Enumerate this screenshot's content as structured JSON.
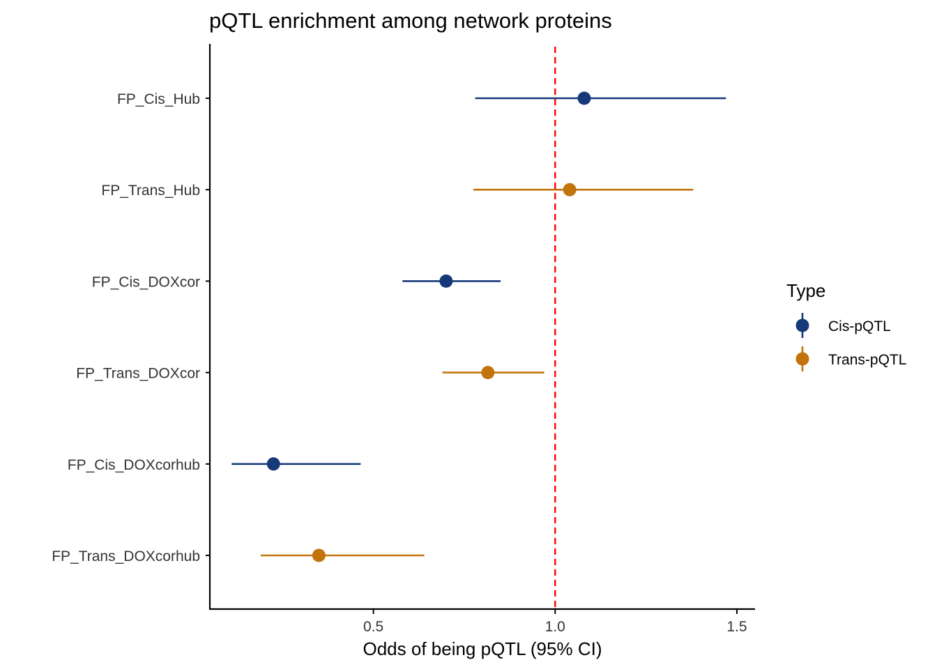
{
  "chart_data": {
    "type": "forest",
    "title": "pQTL enrichment among network proteins",
    "xlabel": "Odds of being pQTL (95% CI)",
    "ylabel": "",
    "xlim": [
      0.05,
      1.55
    ],
    "x_ticks": [
      0.5,
      1.0,
      1.5
    ],
    "x_tick_labels": [
      "0.5",
      "1.0",
      "1.5"
    ],
    "reference_line": {
      "x": 1.0,
      "style": "dashed",
      "color": "#ff0000"
    },
    "grid": false,
    "categories": [
      "FP_Cis_Hub",
      "FP_Trans_Hub",
      "FP_Cis_DOXcor",
      "FP_Trans_DOXcor",
      "FP_Cis_DOXcorhub",
      "FP_Trans_DOXcorhub"
    ],
    "points": [
      {
        "label": "FP_Cis_Hub",
        "type": "Cis-pQTL",
        "estimate": 1.08,
        "lower": 0.78,
        "upper": 1.47
      },
      {
        "label": "FP_Trans_Hub",
        "type": "Trans-pQTL",
        "estimate": 1.04,
        "lower": 0.775,
        "upper": 1.38
      },
      {
        "label": "FP_Cis_DOXcor",
        "type": "Cis-pQTL",
        "estimate": 0.7,
        "lower": 0.58,
        "upper": 0.85
      },
      {
        "label": "FP_Trans_DOXcor",
        "type": "Trans-pQTL",
        "estimate": 0.815,
        "lower": 0.69,
        "upper": 0.97
      },
      {
        "label": "FP_Cis_DOXcorhub",
        "type": "Cis-pQTL",
        "estimate": 0.225,
        "lower": 0.11,
        "upper": 0.465
      },
      {
        "label": "FP_Trans_DOXcorhub",
        "type": "Trans-pQTL",
        "estimate": 0.35,
        "lower": 0.19,
        "upper": 0.64
      }
    ],
    "legend": {
      "title": "Type",
      "position": "right",
      "entries": [
        {
          "name": "Cis-pQTL",
          "color": "#17397a"
        },
        {
          "name": "Trans-pQTL",
          "color": "#c2730c"
        }
      ]
    }
  }
}
